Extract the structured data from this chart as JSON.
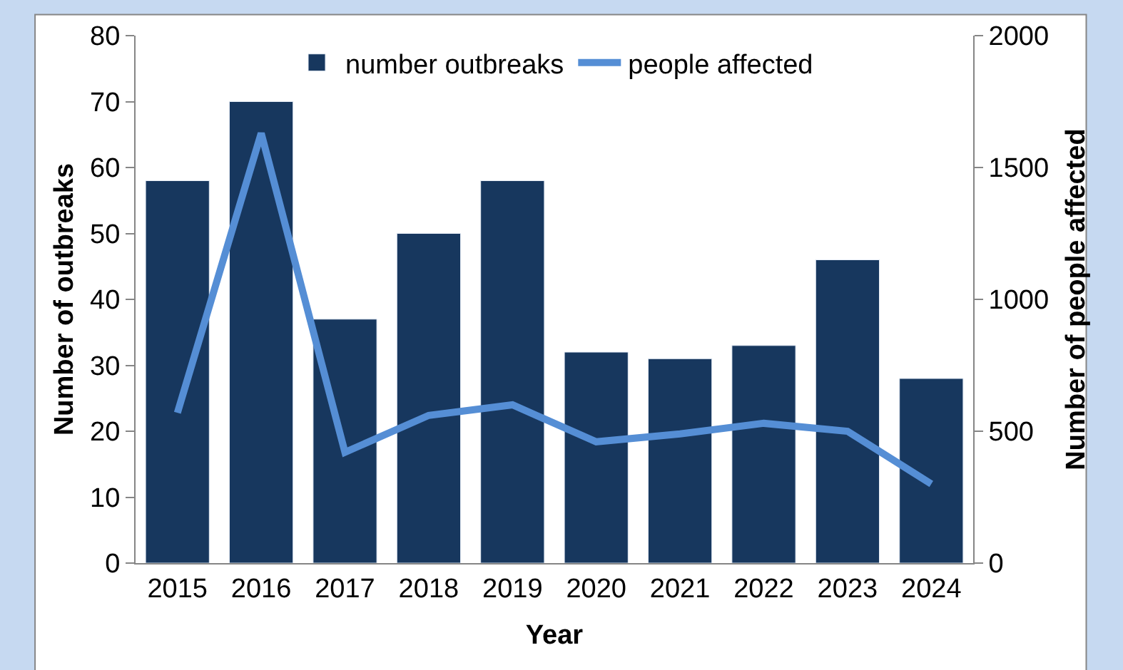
{
  "chart_data": {
    "type": "bar",
    "xlabel": "Year",
    "ylabel": "Number of outbreaks",
    "y2label": "Number of people affected",
    "categories": [
      "2015",
      "2016",
      "2017",
      "2018",
      "2019",
      "2020",
      "2021",
      "2022",
      "2023",
      "2024"
    ],
    "series": [
      {
        "name": "number outbreaks",
        "color": "#17375e",
        "values": [
          58,
          70,
          37,
          50,
          58,
          32,
          31,
          33,
          46,
          28
        ]
      },
      {
        "name": "people affected",
        "type": "line",
        "axis": "y2",
        "color": "#558ed5",
        "values": [
          570,
          1630,
          420,
          560,
          600,
          460,
          490,
          530,
          500,
          300
        ]
      }
    ],
    "ylim": [
      0,
      80
    ],
    "yticks": [
      0,
      10,
      20,
      30,
      40,
      50,
      60,
      70,
      80
    ],
    "y2lim": [
      0,
      2000
    ],
    "y2ticks": [
      0,
      500,
      1000,
      1500,
      2000
    ],
    "grid": false,
    "legend": "top",
    "marker": "none",
    "line_style": "solid"
  }
}
